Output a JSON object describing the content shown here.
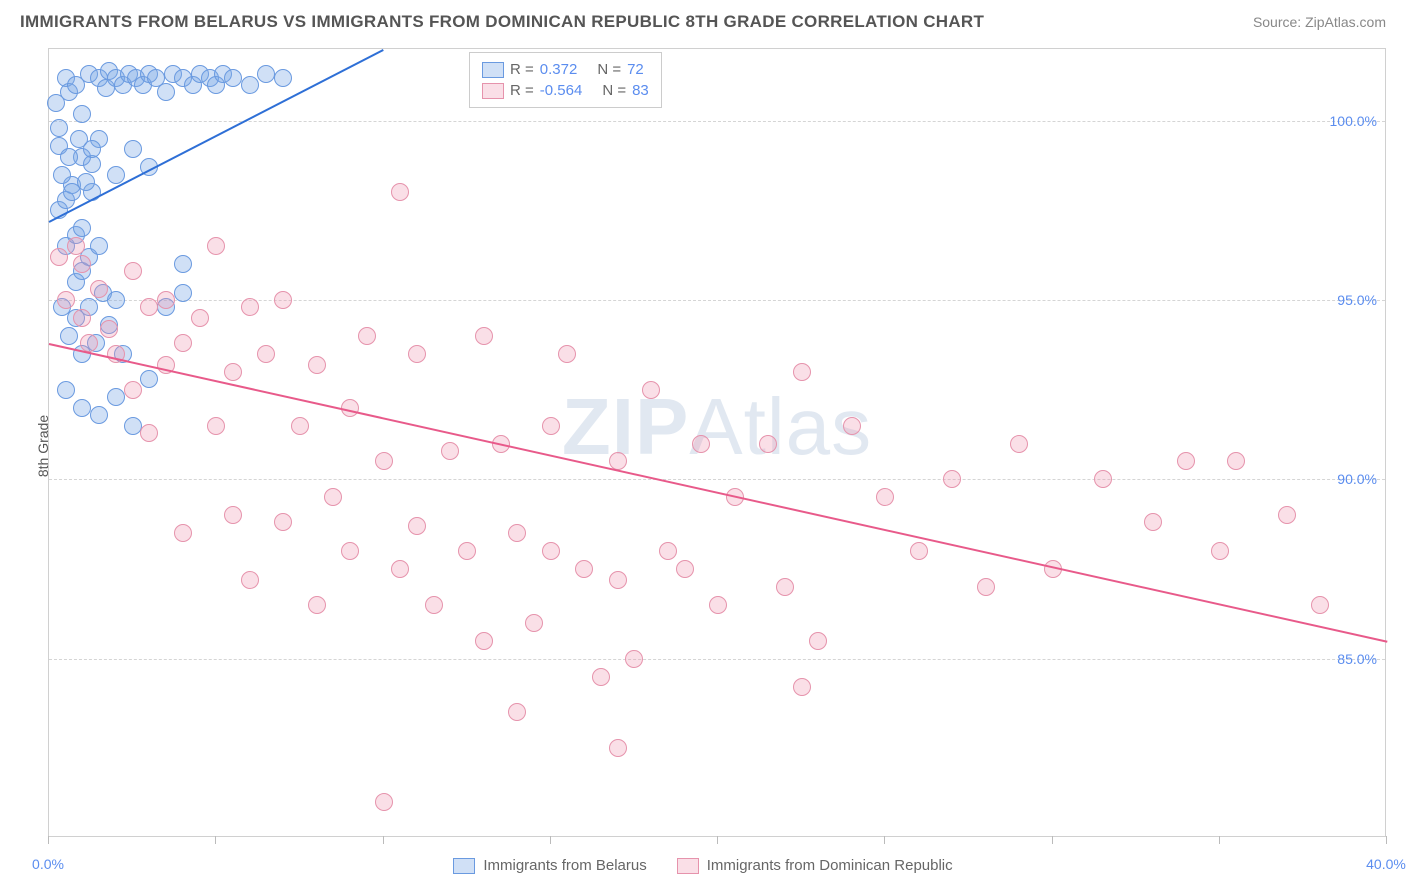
{
  "header": {
    "title": "IMMIGRANTS FROM BELARUS VS IMMIGRANTS FROM DOMINICAN REPUBLIC 8TH GRADE CORRELATION CHART",
    "source": "Source: ZipAtlas.com"
  },
  "ylabel": "8th Grade",
  "watermark": {
    "bold": "ZIP",
    "rest": "Atlas"
  },
  "chart": {
    "type": "scatter",
    "xlim": [
      0,
      40
    ],
    "ylim": [
      80,
      102
    ],
    "xtick_positions": [
      0,
      5,
      10,
      15,
      20,
      25,
      30,
      35,
      40
    ],
    "xtick_labels": {
      "0": "0.0%",
      "40": "40.0%"
    },
    "ytick_positions": [
      85,
      90,
      95,
      100
    ],
    "ytick_labels": {
      "85": "85.0%",
      "90": "90.0%",
      "95": "95.0%",
      "100": "100.0%"
    },
    "background_color": "#ffffff",
    "grid_color": "#d5d5d5",
    "series": [
      {
        "name": "Immigrants from Belarus",
        "color_fill": "rgba(120,165,230,0.35)",
        "color_stroke": "#6a9ae0",
        "line_color": "#2e6fd6",
        "R": "0.372",
        "N": "72",
        "trend": {
          "x1": 0,
          "y1": 97.2,
          "x2": 10,
          "y2": 102
        },
        "points": [
          [
            0.2,
            100.5
          ],
          [
            0.3,
            99.8
          ],
          [
            0.5,
            101.2
          ],
          [
            0.6,
            100.8
          ],
          [
            0.8,
            101.0
          ],
          [
            1.0,
            99.0
          ],
          [
            1.0,
            100.2
          ],
          [
            1.2,
            101.3
          ],
          [
            1.3,
            98.8
          ],
          [
            1.5,
            101.2
          ],
          [
            1.5,
            99.5
          ],
          [
            1.7,
            100.9
          ],
          [
            1.8,
            101.4
          ],
          [
            2.0,
            101.2
          ],
          [
            2.0,
            98.5
          ],
          [
            2.2,
            101.0
          ],
          [
            2.4,
            101.3
          ],
          [
            2.5,
            99.2
          ],
          [
            2.6,
            101.2
          ],
          [
            2.8,
            101.0
          ],
          [
            3.0,
            101.3
          ],
          [
            3.0,
            98.7
          ],
          [
            3.2,
            101.2
          ],
          [
            3.5,
            100.8
          ],
          [
            3.7,
            101.3
          ],
          [
            4.0,
            101.2
          ],
          [
            4.0,
            96.0
          ],
          [
            4.3,
            101.0
          ],
          [
            4.5,
            101.3
          ],
          [
            4.8,
            101.2
          ],
          [
            5.0,
            101.0
          ],
          [
            5.2,
            101.3
          ],
          [
            5.5,
            101.2
          ],
          [
            6.0,
            101.0
          ],
          [
            6.5,
            101.3
          ],
          [
            7.0,
            101.2
          ],
          [
            0.3,
            97.5
          ],
          [
            0.5,
            97.8
          ],
          [
            0.5,
            96.5
          ],
          [
            0.7,
            98.2
          ],
          [
            0.8,
            96.8
          ],
          [
            0.8,
            95.5
          ],
          [
            1.0,
            97.0
          ],
          [
            1.0,
            95.8
          ],
          [
            1.2,
            96.2
          ],
          [
            1.3,
            98.0
          ],
          [
            1.5,
            96.5
          ],
          [
            0.4,
            94.8
          ],
          [
            0.6,
            94.0
          ],
          [
            0.8,
            94.5
          ],
          [
            1.0,
            93.5
          ],
          [
            1.2,
            94.8
          ],
          [
            1.4,
            93.8
          ],
          [
            1.6,
            95.2
          ],
          [
            1.8,
            94.3
          ],
          [
            2.0,
            95.0
          ],
          [
            2.2,
            93.5
          ],
          [
            0.5,
            92.5
          ],
          [
            1.0,
            92.0
          ],
          [
            1.5,
            91.8
          ],
          [
            2.0,
            92.3
          ],
          [
            2.5,
            91.5
          ],
          [
            3.0,
            92.8
          ],
          [
            3.5,
            94.8
          ],
          [
            4.0,
            95.2
          ],
          [
            0.3,
            99.3
          ],
          [
            0.4,
            98.5
          ],
          [
            0.6,
            99.0
          ],
          [
            0.7,
            98.0
          ],
          [
            0.9,
            99.5
          ],
          [
            1.1,
            98.3
          ],
          [
            1.3,
            99.2
          ]
        ]
      },
      {
        "name": "Immigrants from Dominican Republic",
        "color_fill": "rgba(240,150,175,0.30)",
        "color_stroke": "#e693ac",
        "line_color": "#e85a8a",
        "R": "-0.564",
        "N": "83",
        "trend": {
          "x1": 0,
          "y1": 93.8,
          "x2": 40,
          "y2": 85.5
        },
        "points": [
          [
            0.3,
            96.2
          ],
          [
            0.5,
            95.0
          ],
          [
            0.8,
            96.5
          ],
          [
            1.0,
            94.5
          ],
          [
            1.0,
            96.0
          ],
          [
            1.2,
            93.8
          ],
          [
            1.5,
            95.3
          ],
          [
            1.8,
            94.2
          ],
          [
            2.0,
            93.5
          ],
          [
            2.5,
            95.8
          ],
          [
            2.5,
            92.5
          ],
          [
            3.0,
            94.8
          ],
          [
            3.0,
            91.3
          ],
          [
            3.5,
            93.2
          ],
          [
            3.5,
            95.0
          ],
          [
            4.0,
            88.5
          ],
          [
            4.0,
            93.8
          ],
          [
            4.5,
            94.5
          ],
          [
            5.0,
            91.5
          ],
          [
            5.0,
            96.5
          ],
          [
            5.5,
            89.0
          ],
          [
            5.5,
            93.0
          ],
          [
            6.0,
            94.8
          ],
          [
            6.0,
            87.2
          ],
          [
            6.5,
            93.5
          ],
          [
            7.0,
            95.0
          ],
          [
            7.0,
            88.8
          ],
          [
            7.5,
            91.5
          ],
          [
            8.0,
            93.2
          ],
          [
            8.0,
            86.5
          ],
          [
            8.5,
            89.5
          ],
          [
            9.0,
            92.0
          ],
          [
            9.0,
            88.0
          ],
          [
            9.5,
            94.0
          ],
          [
            10.0,
            90.5
          ],
          [
            10.0,
            81.0
          ],
          [
            10.5,
            87.5
          ],
          [
            10.5,
            98.0
          ],
          [
            11.0,
            88.7
          ],
          [
            11.0,
            93.5
          ],
          [
            11.5,
            86.5
          ],
          [
            12.0,
            90.8
          ],
          [
            12.5,
            88.0
          ],
          [
            13.0,
            94.0
          ],
          [
            13.0,
            85.5
          ],
          [
            13.5,
            91.0
          ],
          [
            14.0,
            88.5
          ],
          [
            14.5,
            86.0
          ],
          [
            15.0,
            91.5
          ],
          [
            15.0,
            88.0
          ],
          [
            15.5,
            93.5
          ],
          [
            16.0,
            87.5
          ],
          [
            16.5,
            84.5
          ],
          [
            17.0,
            90.5
          ],
          [
            17.0,
            87.2
          ],
          [
            17.5,
            85.0
          ],
          [
            18.0,
            92.5
          ],
          [
            18.5,
            88.0
          ],
          [
            19.0,
            87.5
          ],
          [
            19.5,
            91.0
          ],
          [
            20.0,
            86.5
          ],
          [
            20.5,
            89.5
          ],
          [
            21.5,
            91.0
          ],
          [
            22.0,
            87.0
          ],
          [
            22.5,
            93.0
          ],
          [
            23.0,
            85.5
          ],
          [
            24.0,
            91.5
          ],
          [
            25.0,
            89.5
          ],
          [
            26.0,
            88.0
          ],
          [
            27.0,
            90.0
          ],
          [
            28.0,
            87.0
          ],
          [
            29.0,
            91.0
          ],
          [
            30.0,
            87.5
          ],
          [
            31.5,
            90.0
          ],
          [
            33.0,
            88.8
          ],
          [
            34.0,
            90.5
          ],
          [
            35.0,
            88.0
          ],
          [
            35.5,
            90.5
          ],
          [
            37.0,
            89.0
          ],
          [
            38.0,
            86.5
          ],
          [
            17.0,
            82.5
          ],
          [
            22.5,
            84.2
          ],
          [
            14.0,
            83.5
          ]
        ]
      }
    ]
  },
  "legend_top": {
    "rows": [
      {
        "swatch_fill": "rgba(120,165,230,0.35)",
        "swatch_stroke": "#6a9ae0",
        "r_label": "R = ",
        "r_val": "0.372",
        "n_label": "N = ",
        "n_val": "72"
      },
      {
        "swatch_fill": "rgba(240,150,175,0.30)",
        "swatch_stroke": "#e693ac",
        "r_label": "R = ",
        "r_val": "-0.564",
        "n_label": "N = ",
        "n_val": "83"
      }
    ]
  },
  "legend_bottom": [
    {
      "swatch_fill": "rgba(120,165,230,0.35)",
      "swatch_stroke": "#6a9ae0",
      "label": "Immigrants from Belarus"
    },
    {
      "swatch_fill": "rgba(240,150,175,0.30)",
      "swatch_stroke": "#e693ac",
      "label": "Immigrants from Dominican Republic"
    }
  ]
}
